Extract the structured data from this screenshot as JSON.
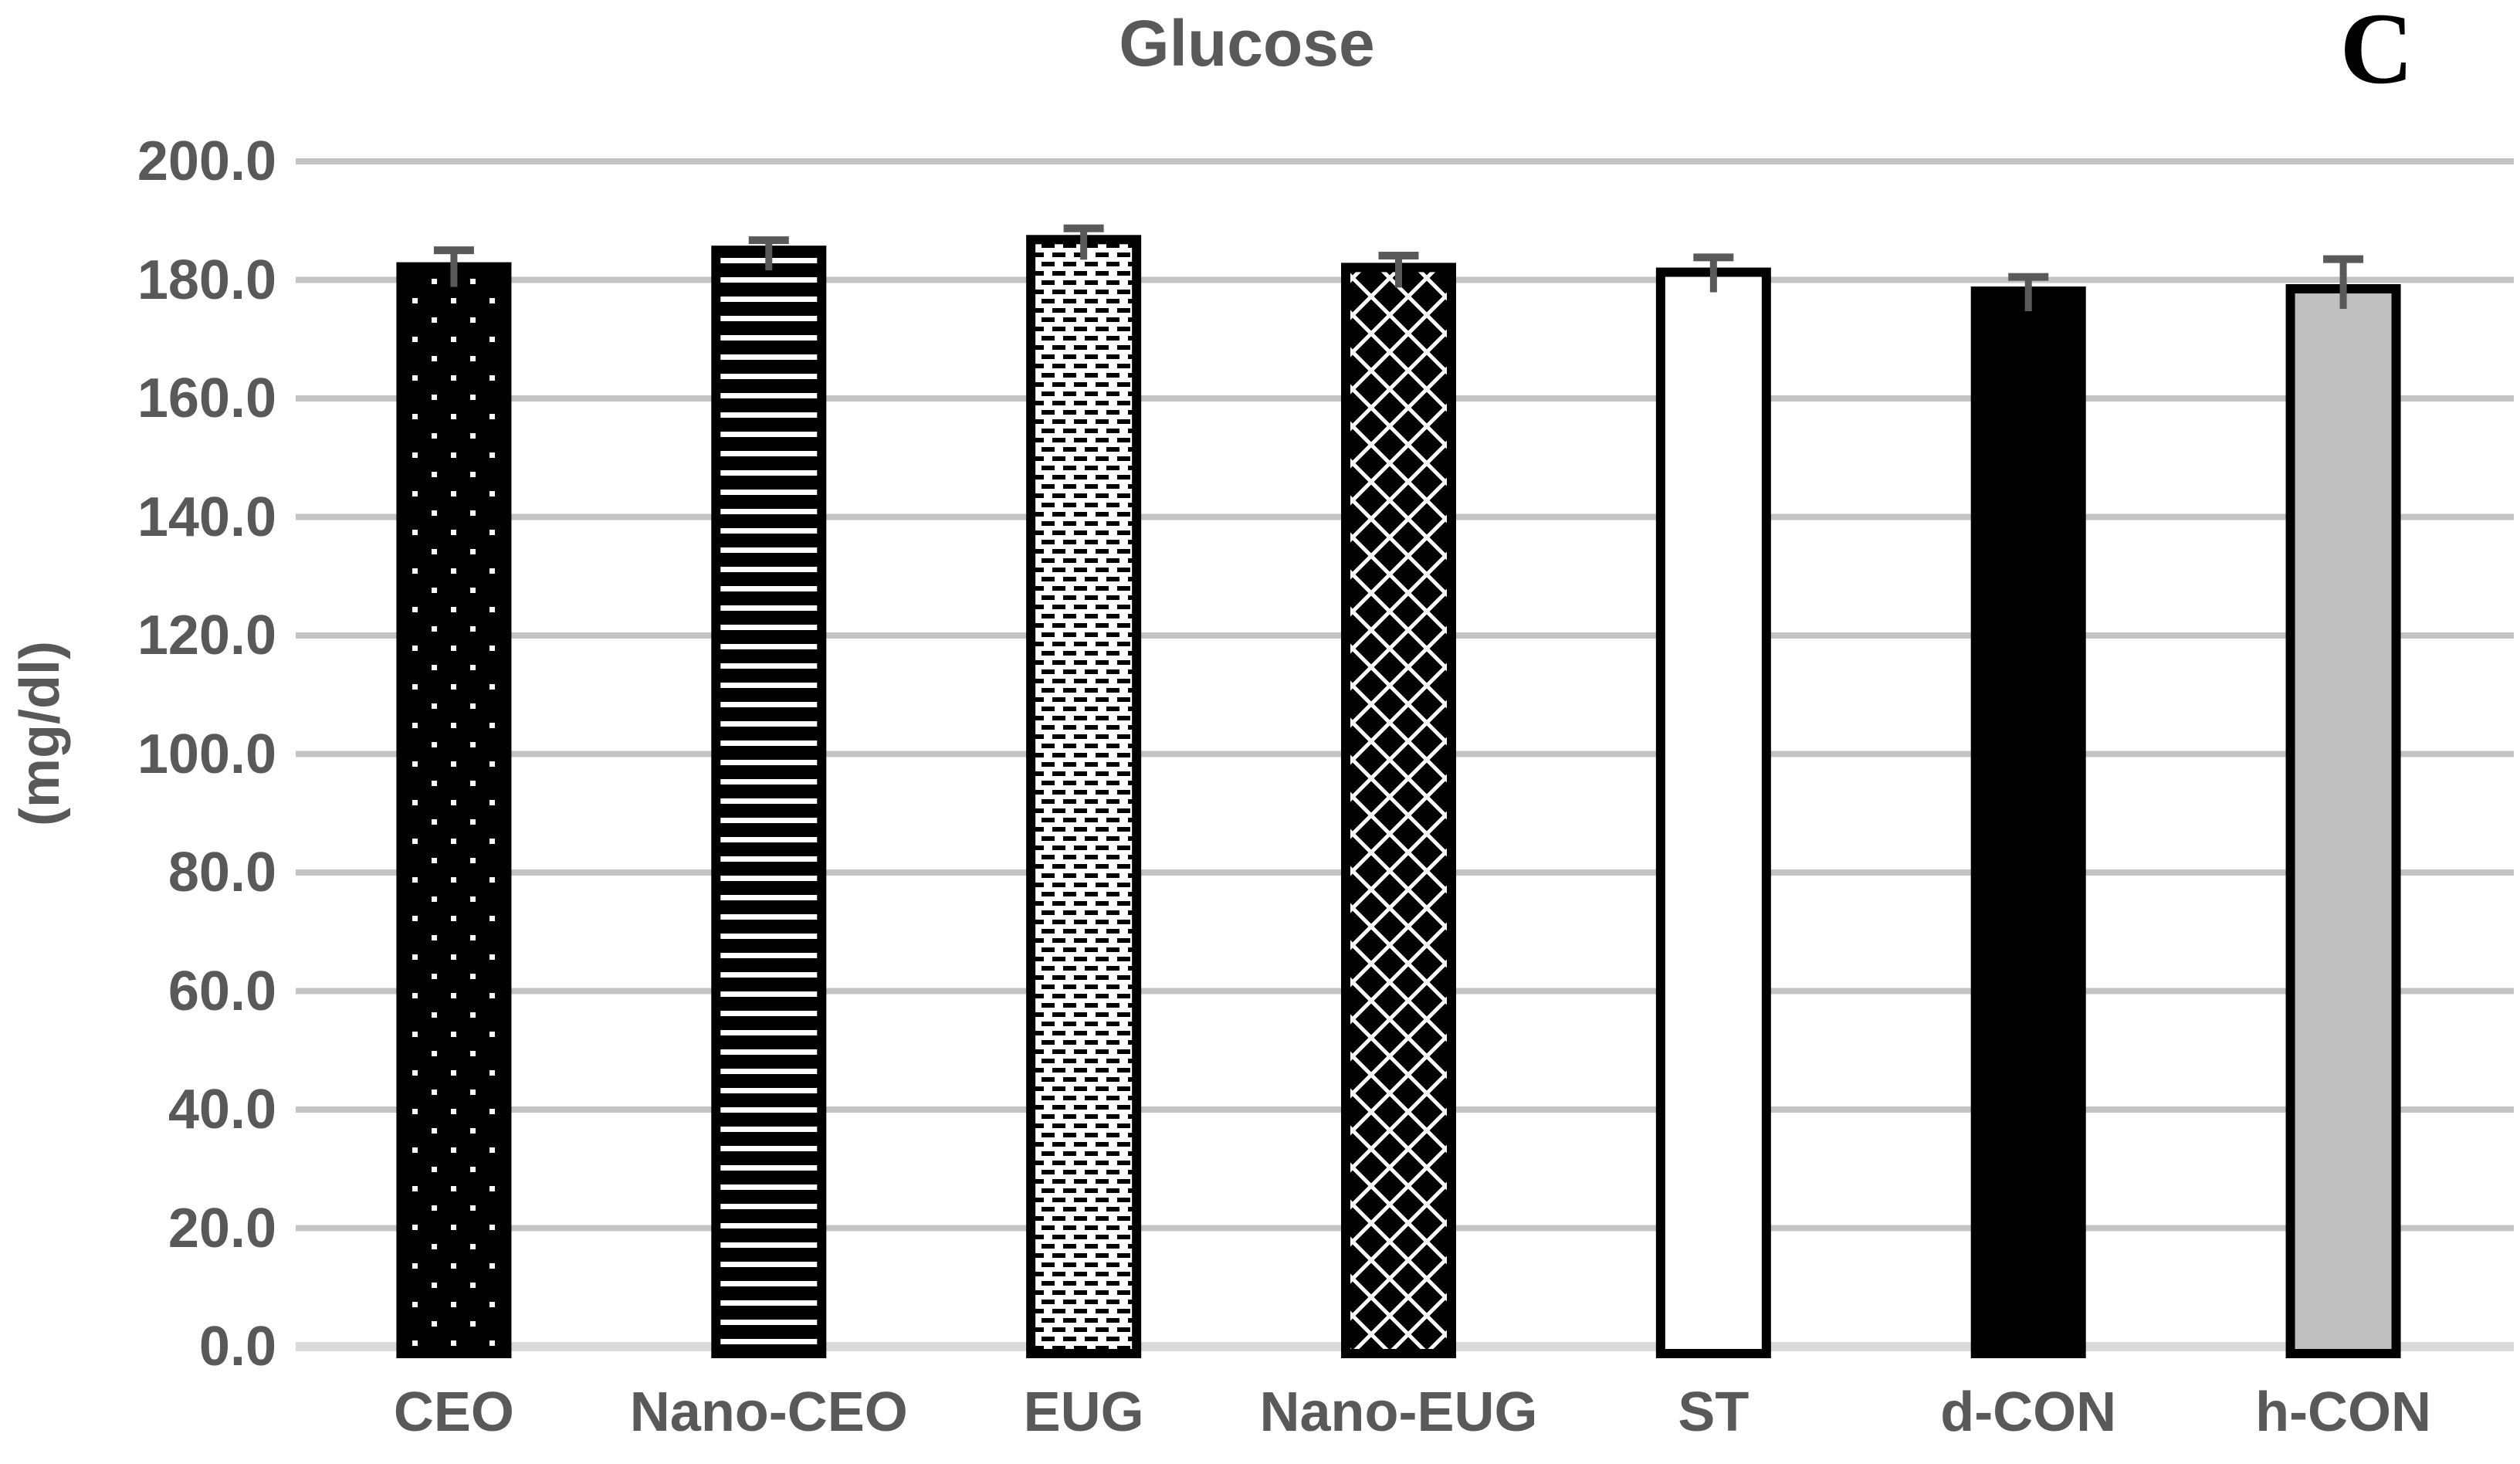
{
  "panel_label": "C",
  "chart_data": {
    "type": "bar",
    "title": "Glucose",
    "xlabel": "",
    "ylabel": "(mg/dl)",
    "categories": [
      "CEO",
      "Nano-CEO",
      "EUG",
      "Nano-EUG",
      "ST",
      "d-CON",
      "h-CON"
    ],
    "values": [
      182.2,
      185.0,
      186.8,
      182.1,
      181.3,
      178.1,
      178.5
    ],
    "errors_up": [
      2.8,
      1.7,
      1.9,
      2.0,
      2.5,
      2.4,
      5.0
    ],
    "ylim": [
      0,
      200
    ],
    "ytick_step": 20,
    "ytick_decimals": 1,
    "grid": true,
    "legend": "none",
    "bar_fill_styles": [
      "dots",
      "hstripes",
      "dashes",
      "crosshatch",
      "white",
      "black",
      "gray"
    ],
    "bar_fill_descriptions": [
      "black with small white square dots",
      "black with white horizontal stripes",
      "white with black dash rows, black border",
      "black with white diagonal lattice",
      "plain white with black border",
      "solid black",
      "gray fill with black border"
    ],
    "colors": {
      "grid": "#c3c3c3",
      "baseline": "#d9d9d9",
      "text": "#595959",
      "error_bar": "#595959",
      "bar_gray": "#bfbfbf",
      "bar_border": "#000000"
    }
  }
}
